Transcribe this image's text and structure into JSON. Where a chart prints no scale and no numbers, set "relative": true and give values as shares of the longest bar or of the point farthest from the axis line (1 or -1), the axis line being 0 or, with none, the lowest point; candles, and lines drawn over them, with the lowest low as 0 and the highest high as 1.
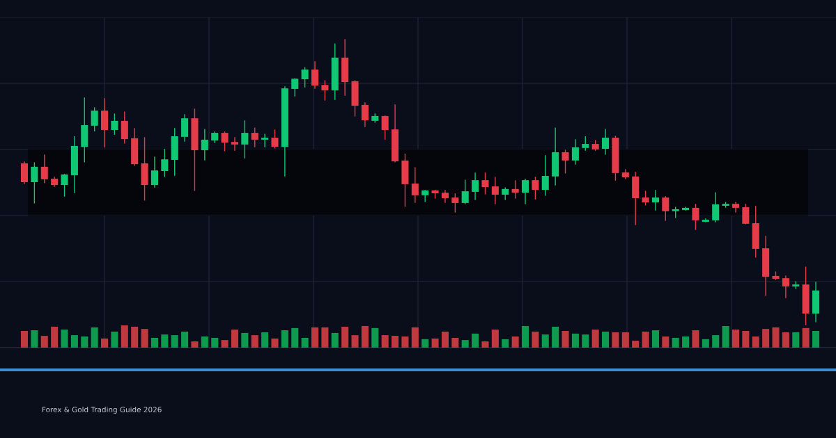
{
  "chart_data": [
    {
      "type": "candlestick",
      "relative": true,
      "grid": true,
      "categories": [
        null,
        null,
        null,
        null,
        null,
        null,
        null,
        null,
        null,
        null,
        null,
        null,
        null,
        null,
        null,
        null,
        null,
        null,
        null,
        null,
        null,
        null,
        null,
        null,
        null,
        null,
        null,
        null,
        null,
        null,
        null,
        null,
        null,
        null,
        null,
        null,
        null,
        null,
        null,
        null,
        null,
        null,
        null,
        null,
        null,
        null,
        null,
        null,
        null,
        null,
        null,
        null,
        null,
        null,
        null,
        null,
        null,
        null,
        null,
        null,
        null,
        null,
        null,
        null,
        null,
        null,
        null,
        null,
        null,
        null,
        null,
        null,
        null,
        null,
        null,
        null,
        null,
        null,
        null,
        null
      ],
      "ohlc": [
        [
          0.566,
          0.571,
          0.495,
          0.5
        ],
        [
          0.5,
          0.568,
          0.427,
          0.554
        ],
        [
          0.554,
          0.595,
          0.498,
          0.51
        ],
        [
          0.512,
          0.517,
          0.485,
          0.49
        ],
        [
          0.49,
          0.527,
          0.451,
          0.527
        ],
        [
          0.524,
          0.659,
          0.463,
          0.627
        ],
        [
          0.624,
          0.795,
          0.571,
          0.7
        ],
        [
          0.698,
          0.761,
          0.68,
          0.751
        ],
        [
          0.751,
          0.793,
          0.624,
          0.683
        ],
        [
          0.683,
          0.739,
          0.668,
          0.715
        ],
        [
          0.715,
          0.746,
          0.637,
          0.651
        ],
        [
          0.654,
          0.688,
          0.559,
          0.563
        ],
        [
          0.566,
          0.656,
          0.437,
          0.49
        ],
        [
          0.49,
          0.588,
          0.483,
          0.541
        ],
        [
          0.539,
          0.615,
          0.52,
          0.58
        ],
        [
          0.578,
          0.688,
          0.524,
          0.661
        ],
        [
          0.659,
          0.737,
          0.644,
          0.724
        ],
        [
          0.724,
          0.756,
          0.471,
          0.612
        ],
        [
          0.612,
          0.685,
          0.578,
          0.649
        ],
        [
          0.646,
          0.676,
          0.639,
          0.673
        ],
        [
          0.673,
          0.676,
          0.61,
          0.639
        ],
        [
          0.641,
          0.656,
          0.612,
          0.632
        ],
        [
          0.632,
          0.715,
          0.585,
          0.673
        ],
        [
          0.673,
          0.69,
          0.624,
          0.649
        ],
        [
          0.649,
          0.668,
          0.624,
          0.656
        ],
        [
          0.656,
          0.683,
          0.62,
          0.624
        ],
        [
          0.624,
          0.834,
          0.522,
          0.829
        ],
        [
          0.827,
          0.863,
          0.802,
          0.863
        ],
        [
          0.861,
          0.902,
          0.834,
          0.895
        ],
        [
          0.895,
          0.922,
          0.829,
          0.839
        ],
        [
          0.841,
          0.856,
          0.788,
          0.822
        ],
        [
          0.822,
          0.985,
          0.79,
          0.937
        ],
        [
          0.937,
          1,
          0.805,
          0.851
        ],
        [
          0.854,
          0.856,
          0.732,
          0.768
        ],
        [
          0.771,
          0.778,
          0.695,
          0.717
        ],
        [
          0.715,
          0.739,
          0.71,
          0.732
        ],
        [
          0.732,
          0.732,
          0.651,
          0.683
        ],
        [
          0.685,
          0.771,
          0.571,
          0.573
        ],
        [
          0.576,
          0.598,
          0.415,
          0.493
        ],
        [
          0.495,
          0.551,
          0.429,
          0.454
        ],
        [
          0.454,
          0.471,
          0.432,
          0.471
        ],
        [
          0.471,
          0.471,
          0.444,
          0.461
        ],
        [
          0.463,
          0.471,
          0.429,
          0.444
        ],
        [
          0.446,
          0.459,
          0.395,
          0.427
        ],
        [
          0.427,
          0.507,
          0.424,
          0.468
        ],
        [
          0.466,
          0.532,
          0.439,
          0.507
        ],
        [
          0.507,
          0.532,
          0.459,
          0.483
        ],
        [
          0.485,
          0.517,
          0.424,
          0.456
        ],
        [
          0.456,
          0.48,
          0.439,
          0.476
        ],
        [
          0.476,
          0.505,
          0.444,
          0.463
        ],
        [
          0.463,
          0.51,
          0.424,
          0.507
        ],
        [
          0.507,
          0.517,
          0.441,
          0.473
        ],
        [
          0.473,
          0.593,
          0.454,
          0.522
        ],
        [
          0.52,
          0.69,
          0.49,
          0.605
        ],
        [
          0.605,
          0.612,
          0.532,
          0.576
        ],
        [
          0.576,
          0.649,
          0.563,
          0.622
        ],
        [
          0.62,
          0.659,
          0.612,
          0.634
        ],
        [
          0.634,
          0.646,
          0.612,
          0.615
        ],
        [
          0.617,
          0.685,
          0.598,
          0.656
        ],
        [
          0.656,
          0.661,
          0.507,
          0.532
        ],
        [
          0.534,
          0.544,
          0.512,
          0.517
        ],
        [
          0.52,
          0.534,
          0.351,
          0.444
        ],
        [
          0.446,
          0.468,
          0.42,
          0.429
        ],
        [
          0.429,
          0.471,
          0.402,
          0.446
        ],
        [
          0.446,
          0.449,
          0.366,
          0.398
        ],
        [
          0.398,
          0.412,
          0.376,
          0.405
        ],
        [
          0.402,
          0.412,
          0.402,
          0.41
        ],
        [
          0.41,
          0.422,
          0.334,
          0.366
        ],
        [
          0.361,
          0.371,
          0.361,
          0.368
        ],
        [
          0.366,
          0.463,
          0.361,
          0.422
        ],
        [
          0.417,
          0.429,
          0.412,
          0.424
        ],
        [
          0.424,
          0.429,
          0.395,
          0.41
        ],
        [
          0.412,
          0.422,
          0.354,
          0.354
        ],
        [
          0.356,
          0.415,
          0.237,
          0.266
        ],
        [
          0.268,
          0.31,
          0.102,
          0.168
        ],
        [
          0.171,
          0.185,
          0.159,
          0.161
        ],
        [
          0.163,
          0.171,
          0.095,
          0.134
        ],
        [
          0.134,
          0.151,
          0.127,
          0.141
        ],
        [
          0.141,
          0.202,
          0,
          0.039
        ],
        [
          0.039,
          0.149,
          0.01,
          0.12
        ]
      ],
      "colors": [
        "#e63c4a",
        "#10c874",
        "#e63c4a",
        "#e63c4a",
        "#10c874",
        "#10c874",
        "#10c874",
        "#10c874",
        "#e63c4a",
        "#10c874",
        "#e63c4a",
        "#e63c4a",
        "#e63c4a",
        "#10c874",
        "#10c874",
        "#10c874",
        "#10c874",
        "#e63c4a",
        "#10c874",
        "#10c874",
        "#e63c4a",
        "#e63c4a",
        "#10c874",
        "#e63c4a",
        "#10c874",
        "#e63c4a",
        "#10c874",
        "#10c874",
        "#10c874",
        "#e63c4a",
        "#e63c4a",
        "#10c874",
        "#e63c4a",
        "#e63c4a",
        "#e63c4a",
        "#10c874",
        "#e63c4a",
        "#e63c4a",
        "#e63c4a",
        "#e63c4a",
        "#10c874",
        "#e63c4a",
        "#e63c4a",
        "#e63c4a",
        "#10c874",
        "#10c874",
        "#e63c4a",
        "#e63c4a",
        "#10c874",
        "#e63c4a",
        "#10c874",
        "#e63c4a",
        "#10c874",
        "#10c874",
        "#e63c4a",
        "#10c874",
        "#10c874",
        "#e63c4a",
        "#10c874",
        "#e63c4a",
        "#e63c4a",
        "#e63c4a",
        "#e63c4a",
        "#10c874",
        "#e63c4a",
        "#10c874",
        "#10c874",
        "#e63c4a",
        "#10c874",
        "#10c874",
        "#10c874",
        "#e63c4a",
        "#e63c4a",
        "#e63c4a",
        "#e63c4a",
        "#e63c4a",
        "#e63c4a",
        "#10c874",
        "#e63c4a",
        "#10c874"
      ],
      "bands": [
        {
          "axis": "y",
          "from": 0.383,
          "to": 0.615,
          "color": "#04060b"
        }
      ],
      "annotations": [
        "Forex & Gold Trading Guide 2026"
      ]
    },
    {
      "type": "bar",
      "relative": true,
      "categories": [
        null,
        null,
        null,
        null,
        null,
        null,
        null,
        null,
        null,
        null,
        null,
        null,
        null,
        null,
        null,
        null,
        null,
        null,
        null,
        null,
        null,
        null,
        null,
        null,
        null,
        null,
        null,
        null,
        null,
        null,
        null,
        null,
        null,
        null,
        null,
        null,
        null,
        null,
        null,
        null,
        null,
        null,
        null,
        null,
        null,
        null,
        null,
        null,
        null,
        null,
        null,
        null,
        null,
        null,
        null,
        null,
        null,
        null,
        null,
        null,
        null,
        null,
        null,
        null,
        null,
        null,
        null,
        null,
        null,
        null,
        null,
        null,
        null,
        null,
        null,
        null,
        null,
        null,
        null,
        null
      ],
      "values": [
        0.75,
        0.78,
        0.53,
        0.94,
        0.81,
        0.56,
        0.5,
        0.91,
        0.41,
        0.72,
        1,
        0.94,
        0.84,
        0.44,
        0.59,
        0.56,
        0.72,
        0.28,
        0.5,
        0.44,
        0.34,
        0.81,
        0.66,
        0.56,
        0.69,
        0.41,
        0.78,
        0.88,
        0.44,
        0.91,
        0.91,
        0.66,
        0.94,
        0.56,
        0.97,
        0.88,
        0.56,
        0.53,
        0.5,
        0.91,
        0.38,
        0.41,
        0.72,
        0.44,
        0.34,
        0.63,
        0.28,
        0.81,
        0.38,
        0.5,
        0.97,
        0.72,
        0.59,
        0.94,
        0.75,
        0.63,
        0.59,
        0.81,
        0.72,
        0.69,
        0.69,
        0.31,
        0.72,
        0.78,
        0.5,
        0.44,
        0.5,
        0.78,
        0.38,
        0.56,
        0.97,
        0.81,
        0.75,
        0.5,
        0.84,
        0.91,
        0.69,
        0.69,
        0.88,
        0.75
      ],
      "colors": [
        "#c0393f",
        "#0e9a4f",
        "#c0393f",
        "#c0393f",
        "#0e9a4f",
        "#0e9a4f",
        "#0e9a4f",
        "#0e9a4f",
        "#c0393f",
        "#0e9a4f",
        "#c0393f",
        "#c0393f",
        "#c0393f",
        "#0e9a4f",
        "#0e9a4f",
        "#0e9a4f",
        "#0e9a4f",
        "#c0393f",
        "#0e9a4f",
        "#0e9a4f",
        "#c0393f",
        "#c0393f",
        "#0e9a4f",
        "#c0393f",
        "#0e9a4f",
        "#c0393f",
        "#0e9a4f",
        "#0e9a4f",
        "#0e9a4f",
        "#c0393f",
        "#c0393f",
        "#0e9a4f",
        "#c0393f",
        "#c0393f",
        "#c0393f",
        "#0e9a4f",
        "#c0393f",
        "#c0393f",
        "#c0393f",
        "#c0393f",
        "#0e9a4f",
        "#c0393f",
        "#c0393f",
        "#c0393f",
        "#0e9a4f",
        "#0e9a4f",
        "#c0393f",
        "#c0393f",
        "#0e9a4f",
        "#c0393f",
        "#0e9a4f",
        "#c0393f",
        "#0e9a4f",
        "#0e9a4f",
        "#c0393f",
        "#0e9a4f",
        "#0e9a4f",
        "#c0393f",
        "#0e9a4f",
        "#c0393f",
        "#c0393f",
        "#c0393f",
        "#c0393f",
        "#0e9a4f",
        "#c0393f",
        "#0e9a4f",
        "#0e9a4f",
        "#c0393f",
        "#0e9a4f",
        "#0e9a4f",
        "#0e9a4f",
        "#c0393f",
        "#c0393f",
        "#c0393f",
        "#c0393f",
        "#c0393f",
        "#c0393f",
        "#0e9a4f",
        "#c0393f",
        "#0e9a4f"
      ]
    }
  ]
}
